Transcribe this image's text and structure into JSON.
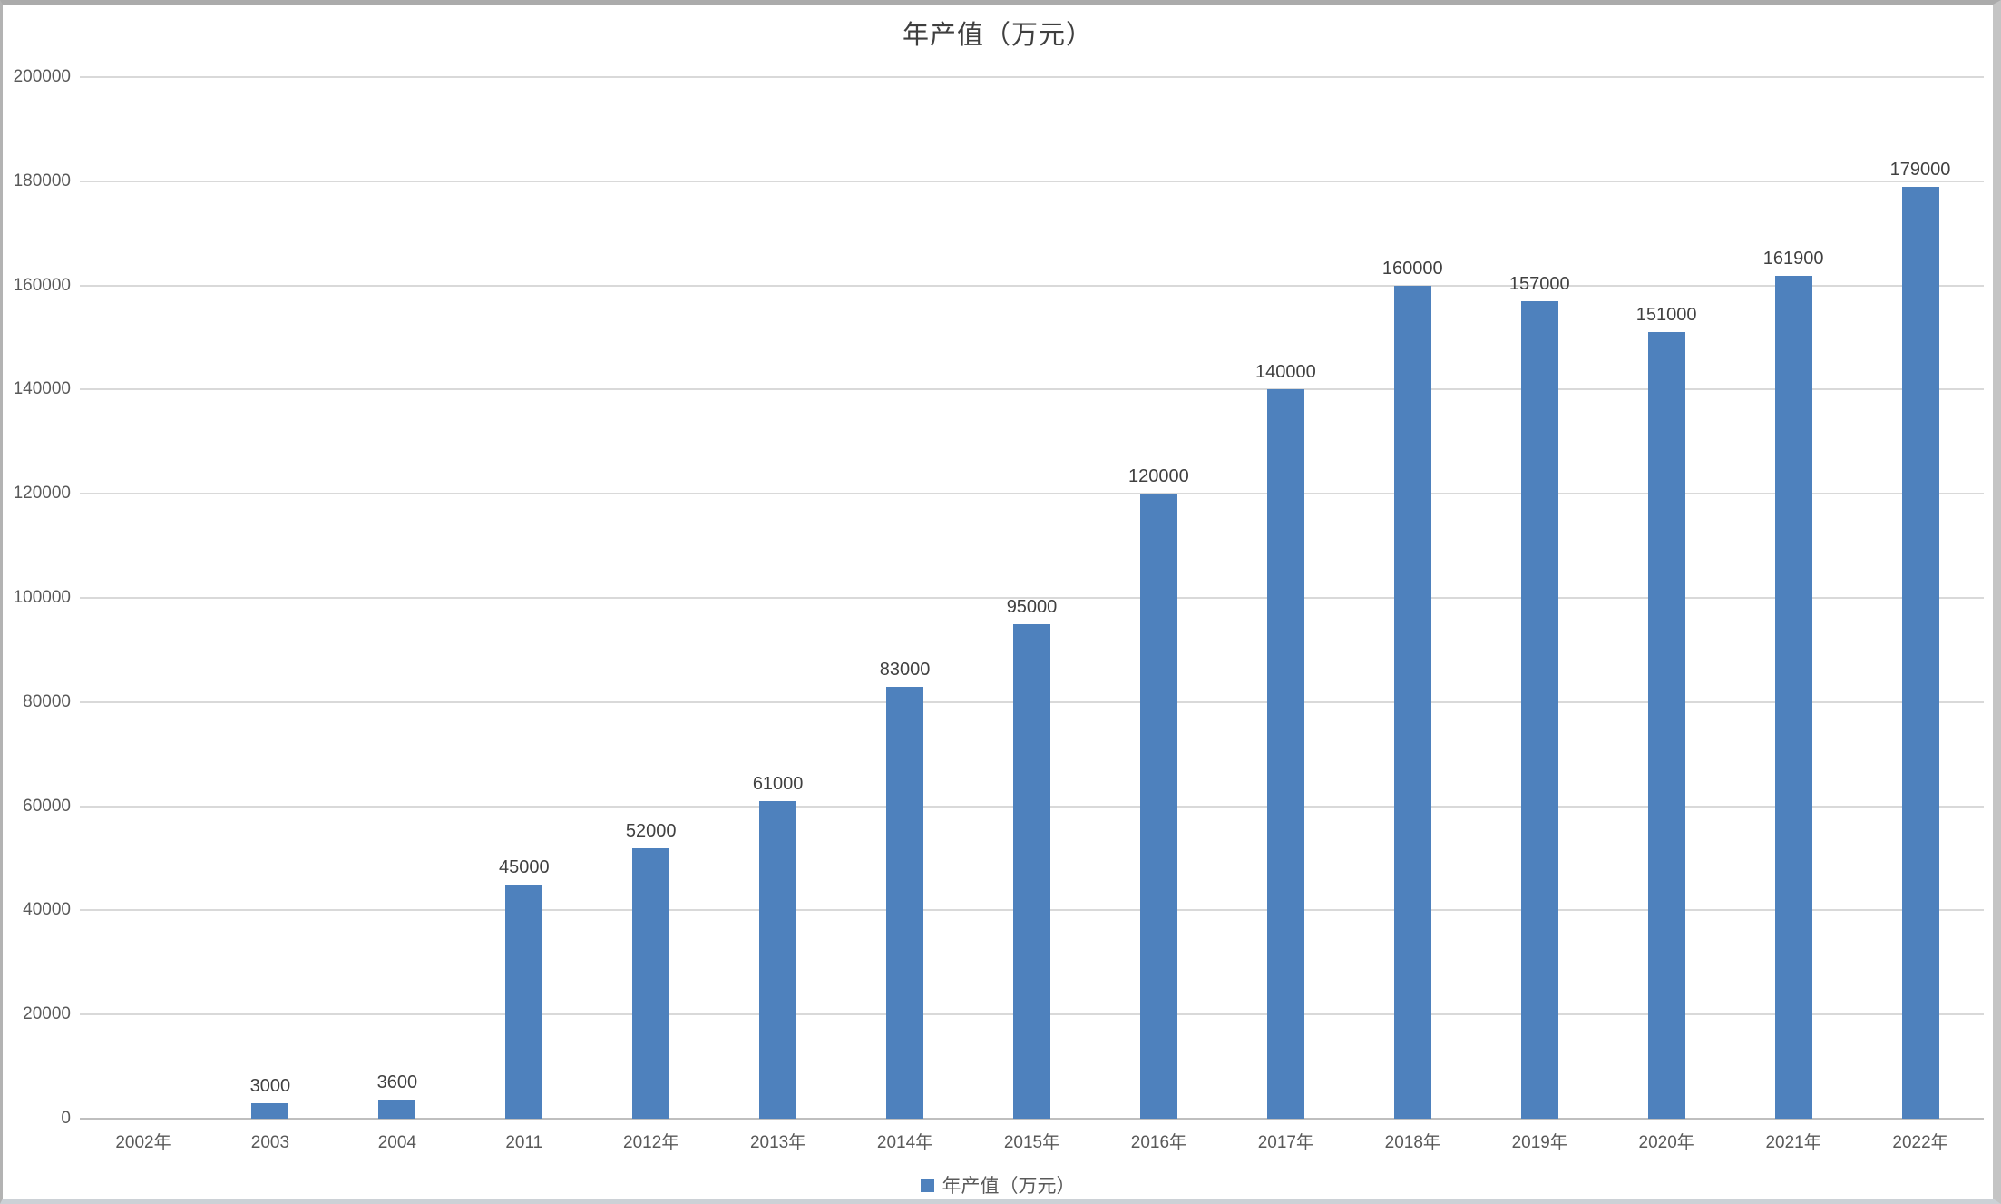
{
  "chart_data": {
    "type": "bar",
    "title": "年产值（万元）",
    "series_name": "年产值（万元）",
    "categories": [
      "2002年",
      "2003",
      "2004",
      "2011",
      "2012年",
      "2013年",
      "2014年",
      "2015年",
      "2016年",
      "2017年",
      "2018年",
      "2019年",
      "2020年",
      "2021年",
      "2022年"
    ],
    "values": [
      null,
      3000,
      3600,
      45000,
      52000,
      61000,
      83000,
      95000,
      120000,
      140000,
      160000,
      157000,
      151000,
      161900,
      179000
    ],
    "ylim": [
      0,
      200000
    ],
    "ytick_interval": 20000,
    "ytick_labels": [
      "0",
      "20000",
      "40000",
      "60000",
      "80000",
      "100000",
      "120000",
      "140000",
      "160000",
      "180000",
      "200000"
    ],
    "data_labels": true,
    "grid": true,
    "legend_position": "bottom",
    "colors": {
      "bar": "#4e81bd",
      "gridline": "#d9d9d9",
      "axis_line": "#bfbfbf",
      "axis_text": "#595959",
      "label_text": "#404040"
    }
  }
}
